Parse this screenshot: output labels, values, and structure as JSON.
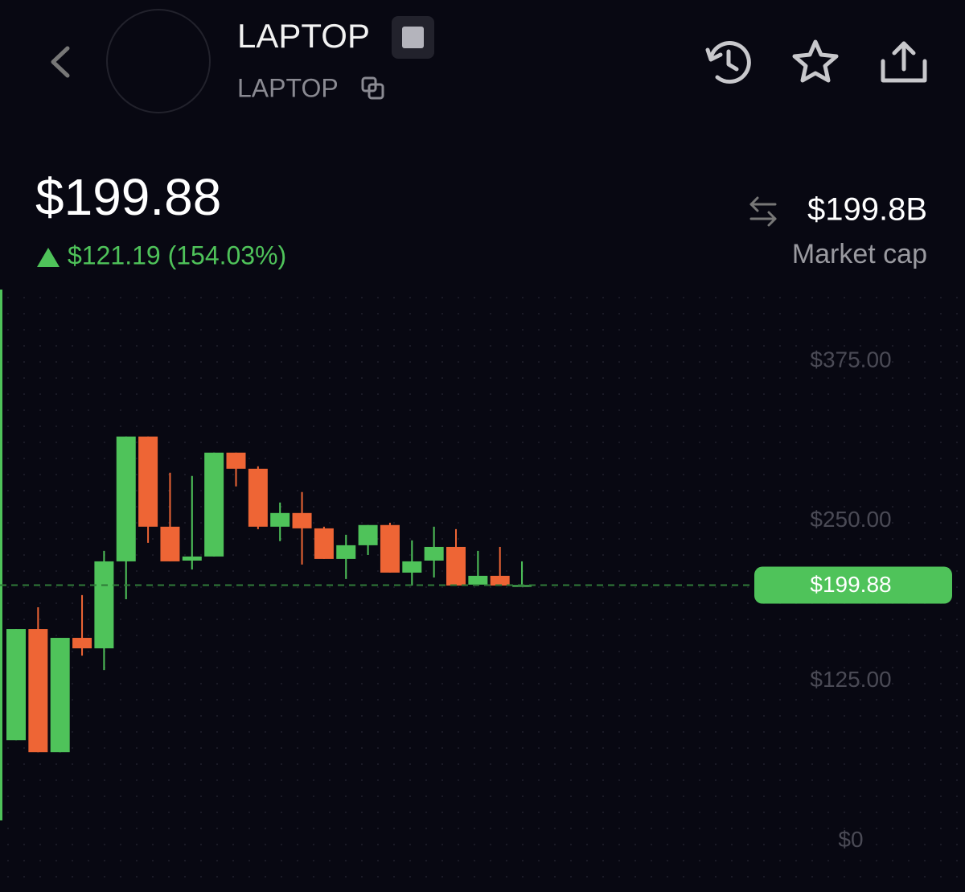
{
  "header": {
    "title": "LAPTOP",
    "subtitle": "LAPTOP"
  },
  "price": {
    "value": "$199.88",
    "change": "$121.19 (154.03%)"
  },
  "market_cap": {
    "value": "$199.8B",
    "label": "Market cap"
  },
  "chart_data": {
    "type": "candlestick",
    "up_color": "#4fc35a",
    "down_color": "#ee6535",
    "open": [
      78.7,
      165.6,
      69.3,
      158.7,
      150.5,
      218.5,
      316.1,
      245.6,
      219.1,
      222.3,
      303.5,
      290.9,
      245.6,
      256.3,
      244.3,
      220.4,
      231.1,
      246.9,
      209.7,
      219.1,
      229.8,
      200.3,
      207.2,
      199.0
    ],
    "high": [
      165.6,
      182.6,
      158.7,
      192.1,
      226.7,
      316.1,
      316.1,
      287.8,
      285.3,
      303.5,
      303.5,
      292.8,
      264.5,
      272.7,
      245.6,
      239.3,
      246.9,
      248.7,
      234.9,
      245.6,
      243.7,
      226.7,
      229.8,
      218.5
    ],
    "low": [
      78.7,
      69.3,
      69.3,
      144.8,
      133.5,
      188.9,
      233.0,
      218.5,
      212.2,
      222.3,
      277.1,
      243.7,
      234.3,
      216.0,
      220.4,
      204.7,
      223.5,
      209.7,
      199.6,
      205.9,
      199.6,
      200.3,
      199.6,
      199.0
    ],
    "close": [
      165.6,
      69.3,
      158.7,
      150.5,
      218.5,
      316.1,
      245.6,
      218.5,
      222.3,
      303.5,
      290.9,
      245.6,
      256.3,
      244.3,
      220.4,
      231.1,
      246.9,
      209.7,
      218.5,
      229.8,
      199.6,
      207.2,
      199.6,
      199.88
    ],
    "ylim": [
      -40,
      431
    ],
    "yticks": [
      {
        "value": 0,
        "label": "$0"
      },
      {
        "value": 125,
        "label": "$125.00"
      },
      {
        "value": 250,
        "label": "$250.00"
      },
      {
        "value": 375,
        "label": "$375.00"
      }
    ],
    "current": {
      "value": 199.88,
      "label": "$199.88"
    }
  }
}
